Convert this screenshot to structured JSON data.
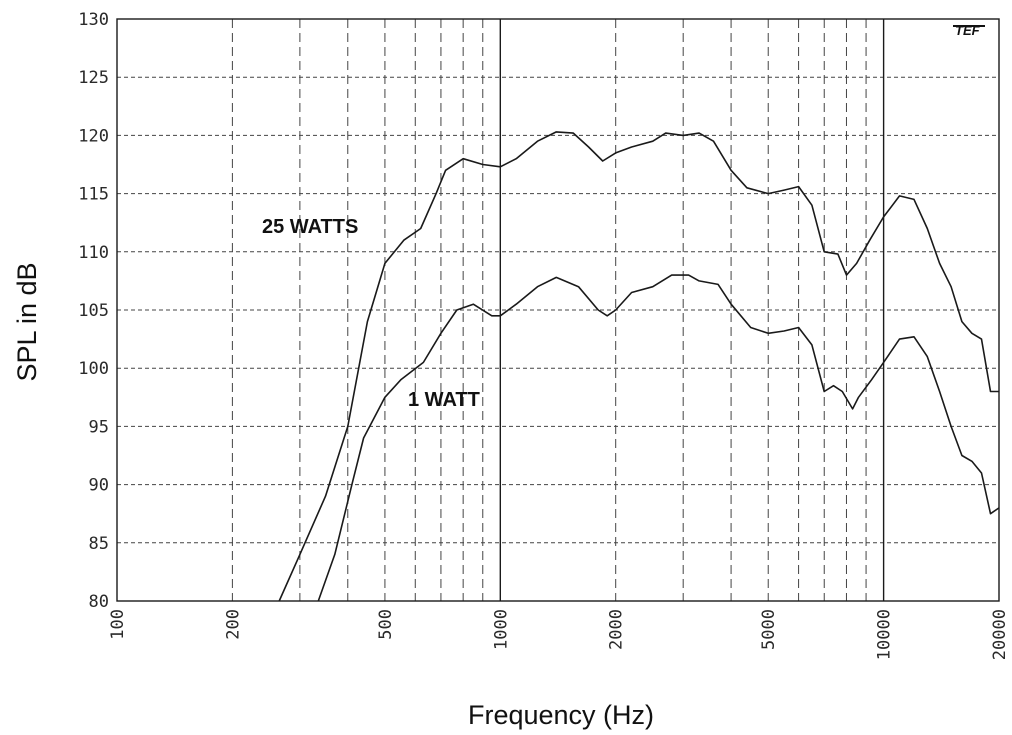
{
  "chart_data": {
    "type": "line",
    "xlabel": "Frequency (Hz)",
    "ylabel": "SPL in dB",
    "xscale": "log",
    "xlim": [
      100,
      20000
    ],
    "ylim": [
      80,
      130
    ],
    "x_ticks": [
      "100",
      "200",
      "500",
      "1000",
      "2000",
      "5000",
      "10000",
      "20000"
    ],
    "y_ticks": [
      "80",
      "85",
      "90",
      "95",
      "100",
      "105",
      "110",
      "115",
      "120",
      "125",
      "130"
    ],
    "grid": true,
    "logo": "TEF",
    "series": [
      {
        "name": "25 WATTS",
        "color": "#1a1a1a",
        "points": [
          [
            265,
            80
          ],
          [
            300,
            84
          ],
          [
            350,
            89
          ],
          [
            400,
            95
          ],
          [
            450,
            104
          ],
          [
            500,
            109
          ],
          [
            560,
            111
          ],
          [
            620,
            112
          ],
          [
            680,
            115
          ],
          [
            720,
            117
          ],
          [
            800,
            118
          ],
          [
            900,
            117.5
          ],
          [
            1000,
            117.3
          ],
          [
            1100,
            118
          ],
          [
            1250,
            119.5
          ],
          [
            1400,
            120.3
          ],
          [
            1550,
            120.2
          ],
          [
            1700,
            119
          ],
          [
            1850,
            117.8
          ],
          [
            2000,
            118.5
          ],
          [
            2200,
            119
          ],
          [
            2500,
            119.5
          ],
          [
            2700,
            120.2
          ],
          [
            3000,
            120
          ],
          [
            3300,
            120.2
          ],
          [
            3600,
            119.5
          ],
          [
            4000,
            117
          ],
          [
            4400,
            115.5
          ],
          [
            5000,
            115
          ],
          [
            5500,
            115.3
          ],
          [
            6000,
            115.6
          ],
          [
            6500,
            114
          ],
          [
            7000,
            110
          ],
          [
            7600,
            109.8
          ],
          [
            8000,
            108
          ],
          [
            8500,
            109
          ],
          [
            9200,
            111
          ],
          [
            10000,
            113
          ],
          [
            11000,
            114.8
          ],
          [
            12000,
            114.5
          ],
          [
            13000,
            112
          ],
          [
            14000,
            109
          ],
          [
            15000,
            107
          ],
          [
            16000,
            104
          ],
          [
            17000,
            103
          ],
          [
            18000,
            102.5
          ],
          [
            19000,
            98
          ],
          [
            20000,
            98
          ]
        ]
      },
      {
        "name": "1 WATT",
        "color": "#1a1a1a",
        "points": [
          [
            335,
            80
          ],
          [
            370,
            84
          ],
          [
            410,
            90
          ],
          [
            440,
            94
          ],
          [
            500,
            97.5
          ],
          [
            550,
            99
          ],
          [
            630,
            100.5
          ],
          [
            700,
            103
          ],
          [
            770,
            105
          ],
          [
            850,
            105.5
          ],
          [
            950,
            104.5
          ],
          [
            1000,
            104.5
          ],
          [
            1100,
            105.5
          ],
          [
            1250,
            107
          ],
          [
            1400,
            107.8
          ],
          [
            1600,
            107
          ],
          [
            1800,
            105
          ],
          [
            1900,
            104.5
          ],
          [
            2000,
            105
          ],
          [
            2200,
            106.5
          ],
          [
            2500,
            107
          ],
          [
            2800,
            108
          ],
          [
            3100,
            108
          ],
          [
            3300,
            107.5
          ],
          [
            3700,
            107.2
          ],
          [
            4000,
            105.5
          ],
          [
            4500,
            103.5
          ],
          [
            5000,
            103
          ],
          [
            5500,
            103.2
          ],
          [
            6000,
            103.5
          ],
          [
            6500,
            102
          ],
          [
            7000,
            98
          ],
          [
            7400,
            98.5
          ],
          [
            7800,
            98
          ],
          [
            8300,
            96.5
          ],
          [
            8600,
            97.5
          ],
          [
            9300,
            99
          ],
          [
            10000,
            100.5
          ],
          [
            11000,
            102.5
          ],
          [
            12000,
            102.7
          ],
          [
            13000,
            101
          ],
          [
            14000,
            98
          ],
          [
            15000,
            95
          ],
          [
            16000,
            92.5
          ],
          [
            17000,
            92
          ],
          [
            18000,
            91
          ],
          [
            19000,
            87.5
          ],
          [
            20000,
            88
          ]
        ]
      }
    ]
  }
}
